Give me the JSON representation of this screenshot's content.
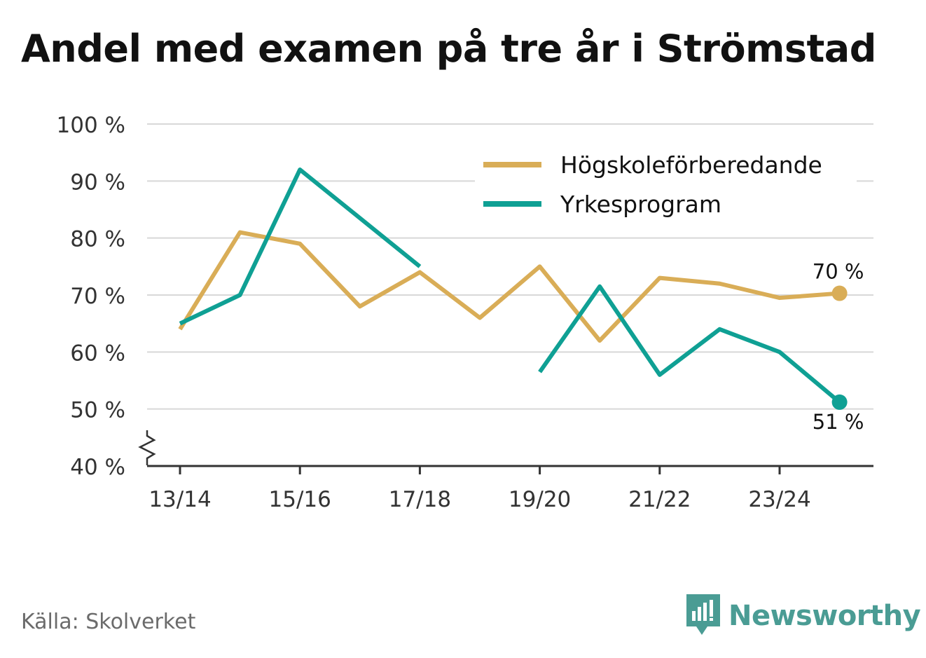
{
  "title": "Andel med examen på tre år i Strömstad",
  "source": "Källa: Skolverket",
  "brand": "Newsworthy",
  "colors": {
    "hogskole": "#d9ad57",
    "yrkes": "#0fa094",
    "grid": "#d8d8d8",
    "axis": "#333333",
    "brand": "#4a9c94"
  },
  "chart_data": {
    "type": "line",
    "title": "Andel med examen på tre år i Strömstad",
    "xlabel": "",
    "ylabel": "",
    "ylim": [
      40,
      100
    ],
    "yticks": [
      40,
      50,
      60,
      70,
      80,
      90,
      100
    ],
    "ytick_labels": [
      "40 %",
      "50 %",
      "60 %",
      "70 %",
      "80 %",
      "90 %",
      "100 %"
    ],
    "y_axis_break": true,
    "categories": [
      "13/14",
      "14/15",
      "15/16",
      "16/17",
      "17/18",
      "18/19",
      "19/20",
      "20/21",
      "21/22",
      "22/23",
      "23/24",
      "24/25"
    ],
    "x_tick_labels": [
      "13/14",
      "15/16",
      "17/18",
      "19/20",
      "21/22",
      "23/24"
    ],
    "legend_position": "top-right",
    "series": [
      {
        "name": "Högskoleförberedande",
        "color_key": "hogskole",
        "values": [
          64,
          81,
          79,
          68,
          74,
          66,
          75,
          62,
          73,
          72,
          69.5,
          70.3
        ],
        "end_label": "70 %"
      },
      {
        "name": "Yrkesprogram",
        "color_key": "yrkes",
        "values": [
          65,
          70,
          92,
          83.5,
          75,
          null,
          56.5,
          71.5,
          56,
          64,
          60,
          51.2
        ],
        "end_label": "51 %"
      }
    ]
  }
}
